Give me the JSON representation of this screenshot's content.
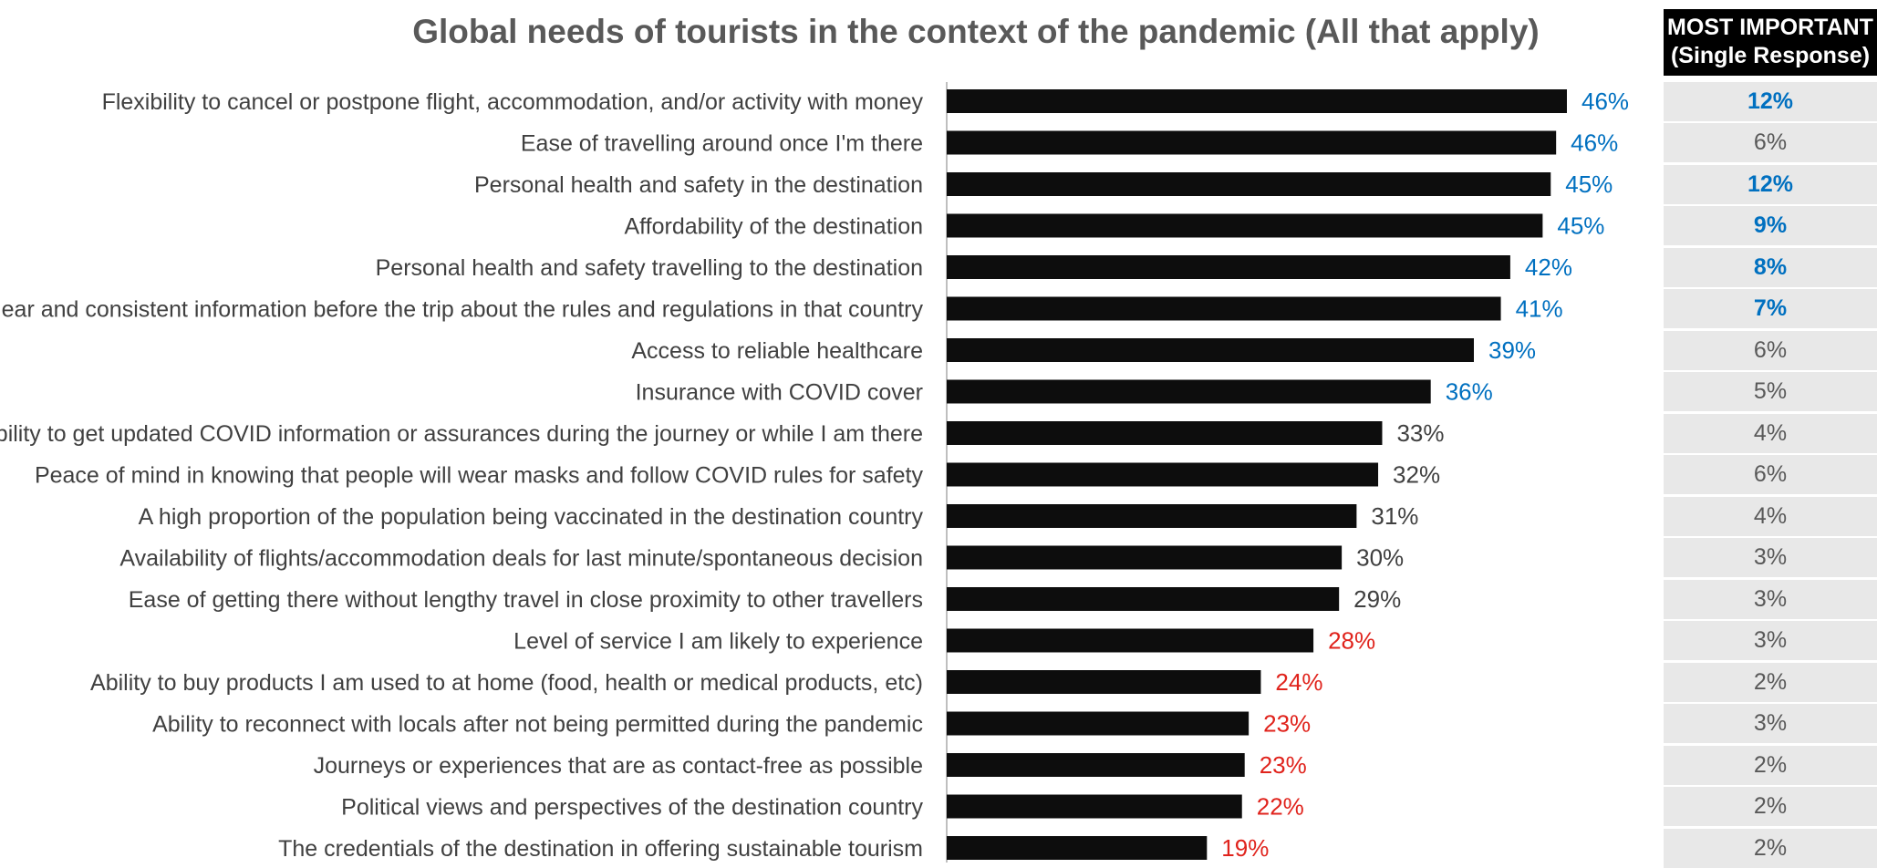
{
  "chart_data": {
    "type": "bar",
    "orientation": "horizontal",
    "title": "Global needs of tourists in the context of the pandemic (All that apply)",
    "xlim": [
      0,
      50
    ],
    "value_suffix": "%",
    "categories": [
      "Flexibility to cancel or postpone flight, accommodation, and/or activity with money",
      "Ease of travelling around once I'm there",
      "Personal health and safety in the destination",
      "Affordability of the destination",
      "Personal health and safety travelling to the destination",
      "Clear and consistent information before the trip about the rules and regulations in that country",
      "Access to reliable healthcare",
      "Insurance with COVID cover",
      "Ability to get updated COVID information or assurances during the journey or while I am there",
      "Peace of mind in knowing that people will wear masks and follow COVID rules for safety",
      "A high proportion of the population being vaccinated in the destination country",
      "Availability of flights/accommodation deals for last minute/spontaneous decision",
      "Ease of getting there without lengthy travel in close proximity to other travellers",
      "Level of service I am likely to experience",
      "Ability to buy products I am used to at home (food, health or medical products, etc)",
      "Ability to reconnect with locals after not being permitted during the pandemic",
      "Journeys or experiences that are as contact-free as possible",
      "Political views and perspectives of the destination country",
      "The credentials of the destination in offering sustainable tourism"
    ],
    "values": [
      46,
      46,
      45,
      45,
      42,
      41,
      39,
      36,
      33,
      32,
      31,
      30,
      29,
      28,
      24,
      23,
      23,
      22,
      19
    ],
    "bar_value_px_hint": [
      46.0,
      45.2,
      44.8,
      44.2,
      41.8,
      41.1,
      39.1,
      35.9,
      32.3,
      32.0,
      30.4,
      29.3,
      29.1,
      27.2,
      23.3,
      22.4,
      22.1,
      21.9,
      19.3
    ],
    "label_groups": [
      "top",
      "top",
      "top",
      "top",
      "top",
      "top",
      "top",
      "top",
      "mid",
      "mid",
      "mid",
      "mid",
      "mid",
      "low",
      "low",
      "low",
      "low",
      "low",
      "low"
    ],
    "colors": {
      "bar": "#0d0d0d",
      "top": "#0070c0",
      "mid": "#404040",
      "low": "#e0231c",
      "axis": "#bfbfbf",
      "category_text": "#404040"
    },
    "most_important": {
      "header_line1": "MOST IMPORTANT",
      "header_line2": "(Single Response)",
      "values": [
        "12%",
        "6%",
        "12%",
        "9%",
        "8%",
        "7%",
        "6%",
        "5%",
        "4%",
        "6%",
        "4%",
        "3%",
        "3%",
        "3%",
        "2%",
        "3%",
        "2%",
        "2%",
        "2%"
      ],
      "highlighted": [
        true,
        false,
        true,
        true,
        true,
        true,
        false,
        false,
        false,
        false,
        false,
        false,
        false,
        false,
        false,
        false,
        false,
        false,
        false
      ]
    }
  }
}
